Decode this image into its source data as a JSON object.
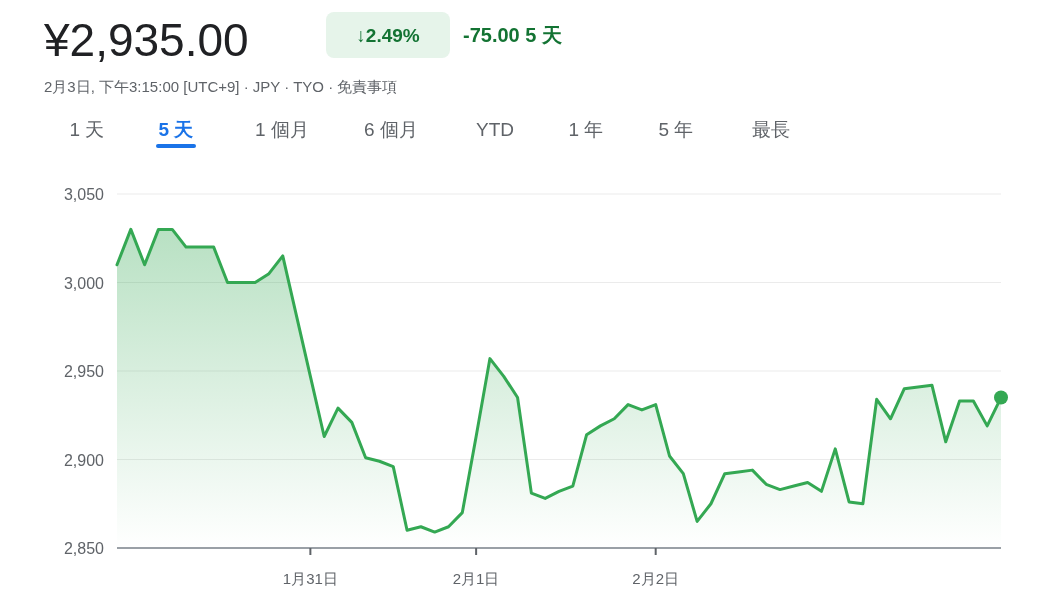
{
  "chart_data": {
    "type": "area",
    "title": "¥2,935.00",
    "subtitle": "2月3日, 下午3:15:00 [UTC+9] · JPY · TYO · 免責事項",
    "annotations": [
      "↓2.49%",
      "-75.00 5 天",
      "1 天",
      "5 天",
      "1 個月",
      "6 個月",
      "YTD",
      "1 年",
      "5 年",
      "最長"
    ],
    "categories": [
      null,
      null,
      null,
      null,
      null,
      null,
      null,
      null,
      null,
      null,
      null,
      null,
      null,
      null,
      "1月31日",
      null,
      null,
      null,
      null,
      null,
      null,
      null,
      null,
      null,
      null,
      null,
      "2月1日",
      null,
      null,
      null,
      null,
      null,
      null,
      null,
      null,
      null,
      null,
      null,
      null,
      "2月2日",
      null,
      null,
      null,
      null,
      null,
      null,
      null,
      null,
      null,
      null,
      null,
      null,
      null,
      null,
      null,
      null,
      null,
      null,
      null,
      null,
      null,
      null,
      null,
      null,
      null
    ],
    "series": [
      {
        "color": "#34a853",
        "values": [
          3010,
          3030,
          3010,
          3030,
          3030,
          3020,
          3020,
          3020,
          3000,
          3000,
          3000,
          3005,
          3015,
          2981,
          2947,
          2913,
          2929,
          2921,
          2901,
          2899,
          2896,
          2860,
          2862,
          2859,
          2862,
          2870,
          2913,
          2957,
          2947,
          2935,
          2881,
          2878,
          2882,
          2885,
          2914,
          2919,
          2923,
          2931,
          2928,
          2931,
          2902,
          2892,
          2865,
          2875,
          2892,
          2893,
          2894,
          2886,
          2883,
          2885,
          2887,
          2882,
          2906,
          2876,
          2875,
          2934,
          2923,
          2940,
          2941,
          2942,
          2910,
          2933,
          2933,
          2919,
          2935
        ]
      }
    ],
    "ylim": [
      2850,
      3050
    ],
    "yticks": [
      {
        "value": 2850,
        "label": "2,850"
      },
      {
        "value": 2900,
        "label": "2,900"
      },
      {
        "value": 2950,
        "label": "2,950"
      },
      {
        "value": 3000,
        "label": "3,000"
      },
      {
        "value": 3050,
        "label": "3,050"
      }
    ],
    "grid": "y",
    "marker": "none",
    "line_style": "solid"
  }
}
